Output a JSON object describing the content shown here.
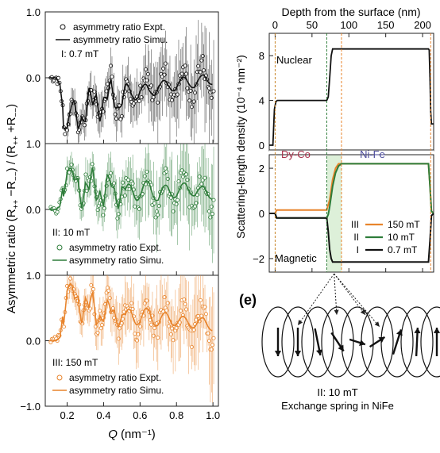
{
  "figure": {
    "left_ylabel": "Asymmetric ratio (R++ −R−−) / (R++ +R−−)",
    "left_ylabel_parts": [
      "Asymmetric ratio (R",
      "++",
      " −R",
      "−−",
      ") / (R",
      "++",
      " +R",
      "−−",
      ")"
    ],
    "left_xlabel": "Q (nm⁻¹)",
    "left_xlabel_q": "Q",
    "left_xlabel_unit": " (nm⁻¹)",
    "right_xlabel": "Depth from the surface (nm)",
    "right_ylabel": "Scattering-length density (10⁻⁴ nm⁻²)",
    "panel_e_label": "(e)",
    "panel_e_caption_1": "II: 10 mT",
    "panel_e_caption_2": "Exchange spring in NiFe"
  },
  "chart_data": [
    {
      "type": "scatter",
      "id": "panel-I",
      "annotation": "I: 0.7 mT",
      "legend": [
        "asymmetry ratio Expt.",
        "asymmetry ratio Simu."
      ],
      "legend_position": "top-right",
      "color": "#111111",
      "x_ticks": [
        0.2,
        0.4,
        0.6,
        0.8,
        1.0
      ],
      "y_ticks": [
        -1.0,
        0.0,
        1.0
      ],
      "y_tick_labels": [
        "",
        "0.0",
        "1.0"
      ],
      "xlim": [
        0.08,
        1.03
      ],
      "ylim": [
        -1.0,
        1.0
      ],
      "series": [
        {
          "x": [
            0.1,
            0.14,
            0.16,
            0.18,
            0.2,
            0.22,
            0.24,
            0.26,
            0.28,
            0.3,
            0.32,
            0.34,
            0.36,
            0.38,
            0.4,
            0.42,
            0.44,
            0.46,
            0.48,
            0.5,
            0.52,
            0.55,
            0.6,
            0.65,
            0.7,
            0.75,
            0.8,
            0.85,
            0.9,
            0.95,
            1.0
          ],
          "y": [
            0.0,
            0.0,
            -0.1,
            -0.55,
            -0.72,
            -0.65,
            -0.5,
            -0.7,
            -0.4,
            -0.62,
            -0.3,
            -0.55,
            -0.2,
            -0.5,
            -0.25,
            -0.45,
            -0.15,
            -0.4,
            -0.3,
            -0.35,
            -0.2,
            -0.3,
            -0.15,
            -0.25,
            -0.1,
            -0.15,
            -0.1,
            -0.05,
            -0.1,
            0.0,
            -0.05
          ]
        }
      ]
    },
    {
      "type": "scatter",
      "id": "panel-II",
      "annotation": "II: 10 mT",
      "legend": [
        "asymmetry ratio Expt.",
        "asymmetry ratio Simu."
      ],
      "legend_position": "bottom-left",
      "color": "#2e7d3a",
      "x_ticks": [
        0.2,
        0.4,
        0.6,
        0.8,
        1.0
      ],
      "y_ticks": [
        -1.0,
        0.0,
        1.0
      ],
      "y_tick_labels": [
        "",
        "0.0",
        "1.0"
      ],
      "xlim": [
        0.08,
        1.03
      ],
      "ylim": [
        -1.0,
        1.0
      ],
      "series": [
        {
          "x": [
            0.1,
            0.14,
            0.16,
            0.18,
            0.2,
            0.22,
            0.24,
            0.26,
            0.28,
            0.3,
            0.32,
            0.34,
            0.36,
            0.38,
            0.4,
            0.42,
            0.44,
            0.46,
            0.48,
            0.5,
            0.52,
            0.55,
            0.6,
            0.65,
            0.7,
            0.75,
            0.8,
            0.85,
            0.9,
            0.95,
            1.0
          ],
          "y": [
            0.0,
            0.0,
            0.05,
            0.4,
            0.6,
            0.45,
            0.3,
            0.55,
            0.2,
            0.45,
            0.15,
            0.5,
            0.2,
            0.45,
            0.1,
            0.4,
            0.25,
            0.35,
            0.15,
            0.4,
            0.2,
            0.3,
            0.25,
            0.35,
            0.2,
            0.3,
            0.25,
            0.35,
            0.25,
            0.3,
            0.2
          ]
        }
      ]
    },
    {
      "type": "scatter",
      "id": "panel-III",
      "annotation": "III: 150 mT",
      "legend": [
        "asymmetry ratio Expt.",
        "asymmetry ratio Simu."
      ],
      "legend_position": "bottom-left",
      "color": "#e8842c",
      "x_ticks": [
        0.2,
        0.4,
        0.6,
        0.8,
        1.0
      ],
      "y_ticks": [
        -1.0,
        0.0,
        1.0
      ],
      "y_tick_labels": [
        "−1.0",
        "0.0",
        "1.0"
      ],
      "xlim": [
        0.08,
        1.03
      ],
      "ylim": [
        -1.0,
        1.0
      ],
      "series": [
        {
          "x": [
            0.1,
            0.14,
            0.16,
            0.18,
            0.2,
            0.22,
            0.24,
            0.26,
            0.28,
            0.3,
            0.32,
            0.34,
            0.36,
            0.38,
            0.4,
            0.42,
            0.44,
            0.46,
            0.48,
            0.5,
            0.52,
            0.55,
            0.6,
            0.65,
            0.7,
            0.75,
            0.8,
            0.85,
            0.9,
            0.95,
            1.0
          ],
          "y": [
            0.0,
            0.0,
            0.05,
            0.45,
            0.8,
            0.7,
            0.5,
            0.75,
            0.45,
            0.7,
            0.35,
            0.6,
            0.3,
            0.55,
            0.35,
            0.5,
            0.3,
            0.5,
            0.35,
            0.45,
            0.3,
            0.4,
            0.35,
            0.4,
            0.3,
            0.35,
            0.3,
            0.3,
            0.25,
            0.3,
            0.2
          ]
        }
      ]
    },
    {
      "type": "line",
      "id": "nuclear-sld",
      "annotation": "Nuclear",
      "x_label": "Depth from the surface (nm)",
      "x_ticks": [
        0,
        50,
        100,
        150,
        200
      ],
      "xlim": [
        -8,
        215
      ],
      "y_ticks": [
        0,
        4,
        8
      ],
      "ylim": [
        -0.5,
        10
      ],
      "series": [
        {
          "x": [
            -8,
            -3,
            -1,
            1,
            3,
            70,
            72,
            74,
            76,
            78,
            208,
            209,
            210,
            211,
            212,
            215
          ],
          "y": [
            0,
            0,
            3.2,
            3.9,
            4.0,
            4.0,
            4.3,
            6.0,
            8.0,
            8.6,
            8.6,
            8.5,
            6.0,
            3.0,
            1.9,
            1.9
          ]
        }
      ]
    },
    {
      "type": "line",
      "id": "magnetic-sld",
      "annotation": "Magnetic",
      "layer_labels": [
        "Dy-Co",
        "Ni-Fe"
      ],
      "x_ticks": [
        0,
        50,
        100,
        150,
        200
      ],
      "xlim": [
        -8,
        215
      ],
      "y_ticks": [
        -2,
        0,
        2
      ],
      "ylim": [
        -2.6,
        2.6
      ],
      "legend_position": "bottom-right",
      "series": [
        {
          "name": "150 mT",
          "marker": "III",
          "color": "#e8842c",
          "x": [
            -8,
            0,
            2,
            70,
            74,
            78,
            82,
            86,
            90,
            208,
            210,
            212,
            215
          ],
          "y": [
            0,
            0,
            0.15,
            0.15,
            0.6,
            1.5,
            2.0,
            2.2,
            2.2,
            2.2,
            1.2,
            0.1,
            0
          ]
        },
        {
          "name": "10 mT",
          "marker": "II",
          "color": "#2e7d3a",
          "x": [
            -8,
            0,
            2,
            70,
            72,
            74,
            78,
            82,
            86,
            90,
            94,
            208,
            210,
            212,
            215
          ],
          "y": [
            0,
            0,
            -0.2,
            -0.2,
            -0.05,
            0.3,
            1.2,
            1.8,
            2.1,
            2.2,
            2.2,
            2.2,
            1.2,
            0.1,
            0
          ]
        },
        {
          "name": "0.7 mT",
          "marker": "I",
          "color": "#111111",
          "x": [
            -8,
            0,
            2,
            70,
            72,
            74,
            76,
            78,
            208,
            210,
            212,
            215
          ],
          "y": [
            0,
            0,
            -0.2,
            -0.2,
            -0.8,
            -1.6,
            -2.0,
            -2.15,
            -2.15,
            -1.2,
            -0.1,
            0
          ]
        }
      ]
    }
  ]
}
